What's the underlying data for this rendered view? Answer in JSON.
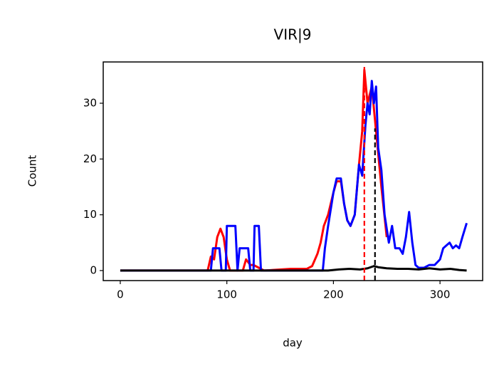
{
  "chart_data": {
    "type": "line",
    "title": "VIR|9",
    "xlabel": "day",
    "ylabel": "Count",
    "xlim": [
      -16,
      340
    ],
    "ylim": [
      -1.8,
      37.4
    ],
    "xticks": [
      0,
      100,
      200,
      300
    ],
    "yticks": [
      0,
      10,
      20,
      30
    ],
    "series": [
      {
        "name": "red",
        "color": "#ff0000",
        "x": [
          0,
          82,
          85,
          88,
          91,
          94,
          97,
          100,
          103,
          115,
          118,
          122,
          125,
          130,
          135,
          160,
          175,
          180,
          185,
          188,
          191,
          195,
          200,
          203,
          207,
          210,
          213,
          216,
          220,
          224,
          227,
          229,
          232,
          236,
          240,
          245,
          250
        ],
        "values": [
          0,
          0,
          2.5,
          2,
          6,
          7.5,
          6,
          2,
          0,
          0,
          2,
          1,
          1,
          0.5,
          0,
          0.3,
          0.3,
          0.8,
          3,
          5,
          8,
          10,
          14,
          16,
          16,
          12,
          9,
          8,
          10,
          19,
          25,
          36,
          30,
          33,
          25,
          15,
          6
        ]
      },
      {
        "name": "blue",
        "color": "#0000ff",
        "x": [
          0,
          85,
          87,
          93,
          95,
          99,
          100,
          108,
          110,
          112,
          120,
          122,
          125,
          126,
          130,
          132,
          190,
          192,
          195,
          200,
          203,
          207,
          210,
          213,
          216,
          220,
          224,
          227,
          230,
          232,
          234,
          236,
          238,
          240,
          242,
          245,
          248,
          252,
          255,
          258,
          262,
          265,
          268,
          271,
          274,
          277,
          280,
          285,
          290,
          295,
          300,
          303,
          306,
          309,
          312,
          315,
          318,
          321,
          325
        ],
        "values": [
          0,
          0,
          4,
          4,
          0,
          0,
          8,
          8,
          0,
          4,
          4,
          0,
          0,
          8,
          8,
          0,
          0,
          4,
          8,
          14,
          16.5,
          16.5,
          12,
          9,
          8,
          10,
          19,
          17,
          26,
          30,
          28,
          34,
          30,
          33,
          22,
          18,
          10,
          5,
          8,
          4,
          4,
          3,
          6,
          10.5,
          5,
          1,
          0.5,
          0.5,
          1,
          1,
          2,
          4,
          4.5,
          5,
          4,
          4.5,
          4,
          6,
          8.5
        ]
      },
      {
        "name": "black",
        "color": "#000000",
        "x": [
          0,
          195,
          205,
          215,
          225,
          232,
          238,
          242,
          250,
          260,
          270,
          280,
          290,
          300,
          310,
          318,
          325
        ],
        "values": [
          0,
          0,
          0.2,
          0.3,
          0.2,
          0.4,
          0.8,
          0.6,
          0.4,
          0.3,
          0.3,
          0.2,
          0.4,
          0.2,
          0.3,
          0.1,
          0
        ]
      }
    ],
    "vlines": [
      {
        "x": 229,
        "ymax": 36.5,
        "color": "#ff0000"
      },
      {
        "x": 239,
        "ymax": 25.5,
        "color": "#000000"
      }
    ]
  }
}
